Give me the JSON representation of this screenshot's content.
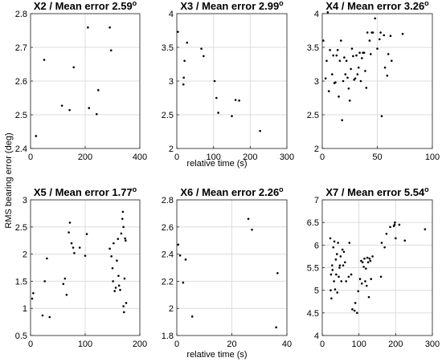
{
  "figure": {
    "ylabel": "RMS bearing error (deg)",
    "xlabel": "relative time (s)"
  },
  "chart_data": [
    {
      "type": "scatter",
      "title": "X2 / Mean error 2.59",
      "title_superscript": "o",
      "xlim": [
        0,
        400
      ],
      "ylim": [
        2.4,
        2.8
      ],
      "xticks": [
        0,
        200,
        400
      ],
      "yticks": [
        2.4,
        2.5,
        2.6,
        2.7,
        2.8
      ],
      "xtick_labels": [
        "0",
        "200",
        "400"
      ],
      "ytick_labels": [
        "2.4",
        "2.5",
        "2.6",
        "2.7",
        "2.8"
      ],
      "grid": true,
      "points": [
        [
          20,
          2.437
        ],
        [
          50,
          2.663
        ],
        [
          115,
          2.527
        ],
        [
          143,
          2.514
        ],
        [
          158,
          2.641
        ],
        [
          210,
          2.759
        ],
        [
          214,
          2.52
        ],
        [
          242,
          2.502
        ],
        [
          248,
          2.573
        ],
        [
          290,
          2.759
        ],
        [
          295,
          2.691
        ]
      ]
    },
    {
      "type": "scatter",
      "title": "X3 / Mean error 2.99",
      "title_superscript": "o",
      "xlim": [
        0,
        300
      ],
      "ylim": [
        2,
        4
      ],
      "xticks": [
        0,
        100,
        200,
        300
      ],
      "yticks": [
        2,
        2.5,
        3,
        3.5,
        4
      ],
      "xtick_labels": [
        "0",
        "100",
        "200",
        "300"
      ],
      "ytick_labels": [
        "2",
        "2.5",
        "3",
        "3.5",
        "4"
      ],
      "grid": true,
      "points": [
        [
          3,
          3.73
        ],
        [
          18,
          2.95
        ],
        [
          19,
          3.05
        ],
        [
          21,
          3.3
        ],
        [
          28,
          3.57
        ],
        [
          67,
          3.48
        ],
        [
          73,
          3.37
        ],
        [
          103,
          3.0
        ],
        [
          108,
          2.75
        ],
        [
          113,
          2.53
        ],
        [
          150,
          2.48
        ],
        [
          160,
          2.72
        ],
        [
          170,
          2.71
        ],
        [
          227,
          2.26
        ]
      ]
    },
    {
      "type": "scatter",
      "title": "X4 / Mean error 3.26",
      "title_superscript": "o",
      "xlim": [
        0,
        100
      ],
      "ylim": [
        2,
        4
      ],
      "xticks": [
        0,
        50,
        100
      ],
      "yticks": [
        2,
        2.5,
        3,
        3.5,
        4
      ],
      "xtick_labels": [
        "0",
        "50",
        "100"
      ],
      "ytick_labels": [
        "2",
        "2.5",
        "3",
        "3.5",
        "4"
      ],
      "grid": true,
      "points": [
        [
          1,
          3.6
        ],
        [
          3,
          3.04
        ],
        [
          4,
          3.3
        ],
        [
          5,
          4.02
        ],
        [
          6,
          2.85
        ],
        [
          7,
          3.46
        ],
        [
          9,
          3.1
        ],
        [
          10,
          3.38
        ],
        [
          11,
          2.97
        ],
        [
          12,
          2.98
        ],
        [
          13,
          3.38
        ],
        [
          14,
          3.46
        ],
        [
          15,
          2.77
        ],
        [
          16,
          3.3
        ],
        [
          17,
          3.6
        ],
        [
          18,
          2.42
        ],
        [
          19,
          3.0
        ],
        [
          20,
          3.35
        ],
        [
          21,
          3.1
        ],
        [
          22,
          3.3
        ],
        [
          23,
          3.05
        ],
        [
          24,
          2.89
        ],
        [
          25,
          2.71
        ],
        [
          26,
          3.18
        ],
        [
          27,
          3.48
        ],
        [
          28,
          3.37
        ],
        [
          29,
          3.02
        ],
        [
          30,
          3.04
        ],
        [
          31,
          3.38
        ],
        [
          32,
          3.1
        ],
        [
          33,
          3.2
        ],
        [
          34,
          3.42
        ],
        [
          35,
          3.0
        ],
        [
          36,
          3.34
        ],
        [
          37,
          3.42
        ],
        [
          38,
          3.42
        ],
        [
          39,
          3.15
        ],
        [
          40,
          2.9
        ],
        [
          41,
          3.72
        ],
        [
          43,
          3.6
        ],
        [
          44,
          3.4
        ],
        [
          45,
          3.72
        ],
        [
          46,
          3.72
        ],
        [
          48,
          3.93
        ],
        [
          50,
          3.48
        ],
        [
          52,
          3.62
        ],
        [
          53,
          3.72
        ],
        [
          54,
          2.48
        ],
        [
          56,
          3.68
        ],
        [
          57,
          3.2
        ],
        [
          59,
          3.08
        ],
        [
          60,
          3.4
        ],
        [
          62,
          3.67
        ],
        [
          63,
          3.3
        ],
        [
          73,
          3.7
        ]
      ]
    },
    {
      "type": "scatter",
      "title": "X5 / Mean error 1.77",
      "title_superscript": "o",
      "xlim": [
        0,
        200
      ],
      "ylim": [
        0.5,
        3
      ],
      "xticks": [
        0,
        100,
        200
      ],
      "yticks": [
        0.5,
        1,
        1.5,
        2,
        2.5,
        3
      ],
      "xtick_labels": [
        "0",
        "100",
        "200"
      ],
      "ytick_labels": [
        "0.5",
        "1",
        "1.5",
        "2",
        "2.5",
        "3"
      ],
      "grid": true,
      "points": [
        [
          3,
          1.18
        ],
        [
          5,
          1.28
        ],
        [
          22,
          0.87
        ],
        [
          26,
          1.5
        ],
        [
          30,
          1.92
        ],
        [
          35,
          0.84
        ],
        [
          60,
          1.45
        ],
        [
          63,
          1.55
        ],
        [
          66,
          1.25
        ],
        [
          70,
          2.4
        ],
        [
          72,
          2.58
        ],
        [
          75,
          2.2
        ],
        [
          78,
          2.12
        ],
        [
          80,
          2.02
        ],
        [
          90,
          2.12
        ],
        [
          100,
          1.97
        ],
        [
          103,
          2.37
        ],
        [
          145,
          2.1
        ],
        [
          148,
          1.96
        ],
        [
          150,
          1.74
        ],
        [
          151,
          1.5
        ],
        [
          152,
          2.2
        ],
        [
          154,
          1.32
        ],
        [
          156,
          1.38
        ],
        [
          158,
          1.88
        ],
        [
          160,
          2.28
        ],
        [
          161,
          1.6
        ],
        [
          162,
          1.42
        ],
        [
          164,
          1.34
        ],
        [
          166,
          2.38
        ],
        [
          168,
          2.65
        ],
        [
          169,
          2.78
        ],
        [
          170,
          2.5
        ],
        [
          170,
          1.04
        ],
        [
          171,
          0.93
        ],
        [
          172,
          1.55
        ],
        [
          173,
          2.29
        ],
        [
          174,
          2.25
        ],
        [
          175,
          1.1
        ]
      ]
    },
    {
      "type": "scatter",
      "title": "X6 / Mean error 2.26",
      "title_superscript": "o",
      "xlim": [
        0,
        40
      ],
      "ylim": [
        1.8,
        2.8
      ],
      "xticks": [
        0,
        20,
        40
      ],
      "yticks": [
        1.8,
        2,
        2.2,
        2.4,
        2.6,
        2.8
      ],
      "xtick_labels": [
        "0",
        "20",
        "40"
      ],
      "ytick_labels": [
        "1.8",
        "2",
        "2.2",
        "2.4",
        "2.6",
        "2.8"
      ],
      "grid": true,
      "points": [
        [
          0.5,
          2.47
        ],
        [
          1.2,
          2.39
        ],
        [
          2.3,
          2.19
        ],
        [
          3.2,
          2.36
        ],
        [
          5.6,
          1.94
        ],
        [
          26,
          2.66
        ],
        [
          27.3,
          2.58
        ],
        [
          36.1,
          1.86
        ],
        [
          36.6,
          2.26
        ]
      ]
    },
    {
      "type": "scatter",
      "title": "X7 / Mean error 5.54",
      "title_superscript": "o",
      "xlim": [
        0,
        300
      ],
      "ylim": [
        4,
        7
      ],
      "xticks": [
        0,
        100,
        200,
        300
      ],
      "yticks": [
        4,
        4.5,
        5,
        5.5,
        6,
        6.5,
        7
      ],
      "xtick_labels": [
        "0",
        "100",
        "200",
        "300"
      ],
      "ytick_labels": [
        "4",
        "4.5",
        "5",
        "5.5",
        "6",
        "6.5",
        "7"
      ],
      "grid": true,
      "points": [
        [
          22,
          6.15
        ],
        [
          23,
          5.0
        ],
        [
          24,
          5.35
        ],
        [
          25,
          4.82
        ],
        [
          27,
          5.55
        ],
        [
          28,
          5.45
        ],
        [
          30,
          5.95
        ],
        [
          32,
          5.2
        ],
        [
          33,
          6.08
        ],
        [
          35,
          5.02
        ],
        [
          37,
          5.68
        ],
        [
          38,
          5.35
        ],
        [
          40,
          5.8
        ],
        [
          41,
          4.95
        ],
        [
          43,
          6.05
        ],
        [
          45,
          5.3
        ],
        [
          47,
          5.5
        ],
        [
          48,
          5.55
        ],
        [
          50,
          5.75
        ],
        [
          52,
          5.2
        ],
        [
          55,
          5.9
        ],
        [
          57,
          5.55
        ],
        [
          59,
          5.85
        ],
        [
          62,
          5.62
        ],
        [
          65,
          5.2
        ],
        [
          72,
          5.3
        ],
        [
          74,
          6.05
        ],
        [
          79,
          5.35
        ],
        [
          82,
          4.58
        ],
        [
          88,
          4.55
        ],
        [
          90,
          4.72
        ],
        [
          95,
          4.5
        ],
        [
          98,
          4.98
        ],
        [
          103,
          5.25
        ],
        [
          106,
          5.65
        ],
        [
          108,
          5.15
        ],
        [
          110,
          5.62
        ],
        [
          113,
          5.52
        ],
        [
          115,
          5.7
        ],
        [
          117,
          5.2
        ],
        [
          119,
          5.48
        ],
        [
          121,
          5.1
        ],
        [
          123,
          5.72
        ],
        [
          125,
          5.62
        ],
        [
          127,
          4.85
        ],
        [
          129,
          5.7
        ],
        [
          131,
          5.65
        ],
        [
          133,
          5.25
        ],
        [
          137,
          5.75
        ],
        [
          160,
          5.3
        ],
        [
          162,
          6.05
        ],
        [
          170,
          5.95
        ],
        [
          175,
          6.25
        ],
        [
          185,
          6.4
        ],
        [
          195,
          6.42
        ],
        [
          197,
          6.45
        ],
        [
          198,
          6.5
        ],
        [
          200,
          6.15
        ],
        [
          210,
          6.45
        ],
        [
          225,
          6.1
        ],
        [
          280,
          6.35
        ]
      ]
    }
  ]
}
